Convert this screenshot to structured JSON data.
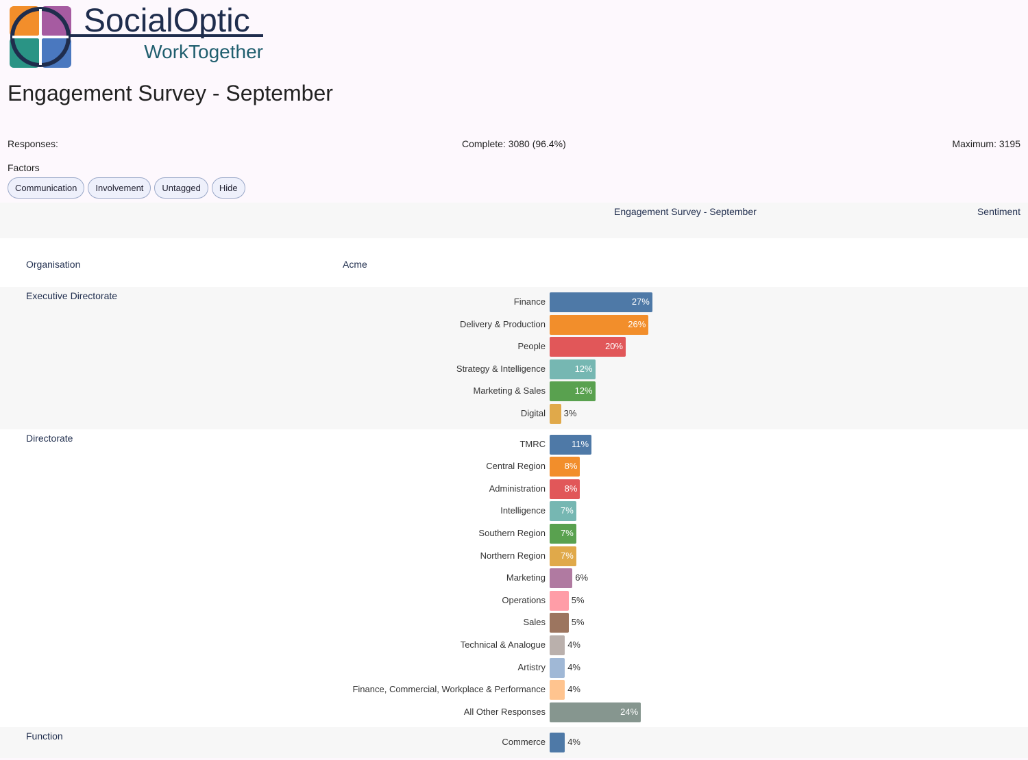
{
  "logo": {
    "name": "SocialOptic",
    "tagline": "WorkTogether"
  },
  "title": "Engagement Survey - September",
  "responses": {
    "label": "Responses:",
    "complete": "Complete: 3080 (96.4%)",
    "maximum": "Maximum: 3195"
  },
  "factors": {
    "label": "Factors",
    "buttons": [
      "Communication",
      "Involvement",
      "Untagged",
      "Hide"
    ]
  },
  "table_header": {
    "survey": "Engagement Survey - September",
    "sentiment": "Sentiment"
  },
  "organisation": {
    "label": "Organisation",
    "value": "Acme"
  },
  "sections": [
    {
      "name": "Executive Directorate",
      "categories": [
        "Finance",
        "Delivery & Production",
        "People",
        "Strategy & Intelligence",
        "Marketing & Sales",
        "Digital"
      ],
      "values": [
        27,
        26,
        20,
        12,
        12,
        3
      ],
      "value_labels": [
        "27%",
        "26%",
        "20%",
        "12%",
        "12%",
        "3%"
      ],
      "colors": [
        "#4e79a7",
        "#f28e2b",
        "#e15759",
        "#76b7b2",
        "#59a14f",
        "#e0a94a"
      ]
    },
    {
      "name": "Directorate",
      "categories": [
        "TMRC",
        "Central Region",
        "Administration",
        "Intelligence",
        "Southern Region",
        "Northern Region",
        "Marketing",
        "Operations",
        "Sales",
        "Technical & Analogue",
        "Artistry",
        "Finance, Commercial, Workplace & Performance",
        "All Other Responses"
      ],
      "values": [
        11,
        8,
        8,
        7,
        7,
        7,
        6,
        5,
        5,
        4,
        4,
        4,
        24
      ],
      "value_labels": [
        "11%",
        "8%",
        "8%",
        "7%",
        "7%",
        "7%",
        "6%",
        "5%",
        "5%",
        "4%",
        "4%",
        "4%",
        "24%"
      ],
      "colors": [
        "#4e79a7",
        "#f28e2b",
        "#e15759",
        "#76b7b2",
        "#59a14f",
        "#e0a94a",
        "#b07aa1",
        "#ff9da7",
        "#9c755f",
        "#bab0ac",
        "#a0b8d6",
        "#ffc48f",
        "#86968f"
      ]
    },
    {
      "name": "Function",
      "categories": [
        "Commerce"
      ],
      "values": [
        4
      ],
      "value_labels": [
        "4%"
      ],
      "colors": [
        "#4e79a7"
      ]
    }
  ]
}
